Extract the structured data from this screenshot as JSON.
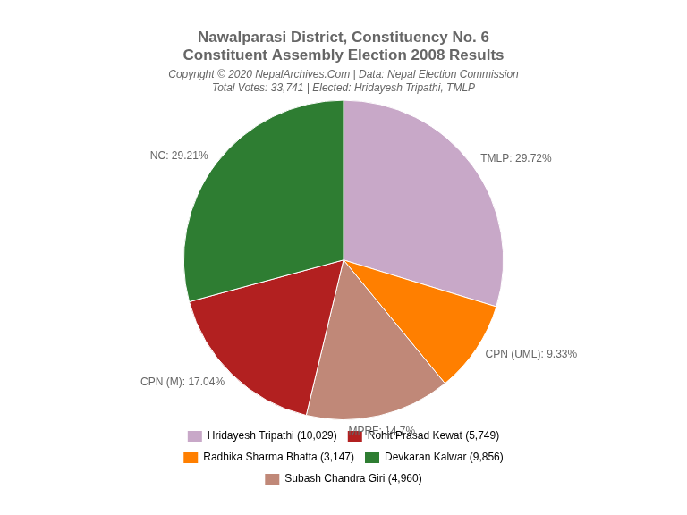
{
  "chart_data": {
    "type": "pie",
    "title": [
      "Nawalparasi District, Constituency No. 6",
      "Constituent Assembly Election 2008 Results"
    ],
    "subtitle": [
      "Copyright © 2020 NepalArchives.Com | Data: Nepal Election Commission",
      "Total Votes: 33,741 | Elected: Hridayesh Tripathi, TMLP"
    ],
    "categories": [
      "TMLP",
      "CPN (UML)",
      "MPRF",
      "CPN (M)",
      "NC"
    ],
    "values": [
      29.72,
      9.33,
      14.7,
      17.04,
      29.21
    ],
    "value_labels": [
      "TMLP: 29.72%",
      "CPN (UML): 9.33%",
      "MPRF: 14.7%",
      "CPN (M): 17.04%",
      "NC: 29.21%"
    ],
    "colors": [
      "#c8a8c8",
      "#ff7f00",
      "#c08878",
      "#b22020",
      "#2e7d32"
    ],
    "data_labels": true,
    "legend": "bottom",
    "legend_items": [
      {
        "name": "Hridayesh Tripathi (10,029)",
        "color": "#c8a8c8"
      },
      {
        "name": "Rohit Prasad Kewat (5,749)",
        "color": "#b22020"
      },
      {
        "name": "Radhika Sharma Bhatta (3,147)",
        "color": "#ff7f00"
      },
      {
        "name": "Devkaran Kalwar (9,856)",
        "color": "#2e7d32"
      },
      {
        "name": "Subash Chandra Giri (4,960)",
        "color": "#c08878"
      }
    ]
  }
}
